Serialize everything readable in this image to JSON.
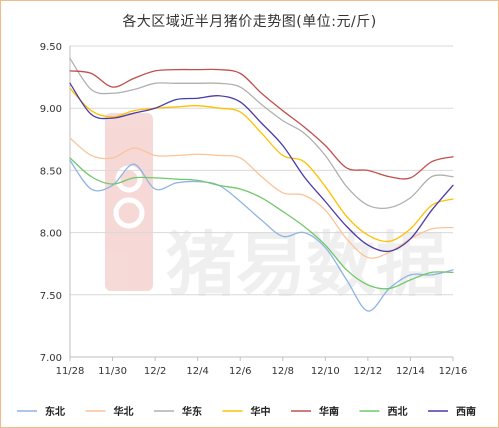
{
  "chart_data": {
    "type": "line",
    "title": "各大区域近半月猪价走势图(单位:元/斤)",
    "xlabel": "",
    "ylabel": "",
    "ylim": [
      7.0,
      9.5
    ],
    "yticks": [
      "9.50",
      "9.00",
      "8.50",
      "8.00",
      "7.50",
      "7.00"
    ],
    "ytick_values": [
      9.5,
      9.0,
      8.5,
      8.0,
      7.5,
      7.0
    ],
    "x": [
      "11/28",
      "11/29",
      "11/30",
      "12/1",
      "12/2",
      "12/3",
      "12/4",
      "12/5",
      "12/6",
      "12/7",
      "12/8",
      "12/9",
      "12/10",
      "12/11",
      "12/12",
      "12/13",
      "12/14",
      "12/15",
      "12/16"
    ],
    "xticks": [
      "11/28",
      "11/30",
      "12/2",
      "12/4",
      "12/6",
      "12/8",
      "12/10",
      "12/12",
      "12/14",
      "12/16"
    ],
    "grid": true,
    "legend_position": "bottom",
    "series": [
      {
        "name": "东北",
        "color": "#8fb4e3",
        "values": [
          8.58,
          8.35,
          8.38,
          8.55,
          8.35,
          8.4,
          8.41,
          8.38,
          8.25,
          8.1,
          7.97,
          8.0,
          7.88,
          7.62,
          7.37,
          7.55,
          7.66,
          7.66,
          7.7
        ]
      },
      {
        "name": "华北",
        "color": "#f9c49a",
        "values": [
          8.76,
          8.62,
          8.6,
          8.68,
          8.62,
          8.62,
          8.63,
          8.62,
          8.6,
          8.45,
          8.32,
          8.3,
          8.18,
          7.95,
          7.8,
          7.84,
          7.95,
          8.03,
          8.04
        ]
      },
      {
        "name": "华东",
        "color": "#b0b0b0",
        "values": [
          9.4,
          9.15,
          9.12,
          9.15,
          9.2,
          9.2,
          9.2,
          9.2,
          9.17,
          9.03,
          8.9,
          8.8,
          8.62,
          8.37,
          8.22,
          8.2,
          8.28,
          8.45,
          8.45
        ]
      },
      {
        "name": "华中",
        "color": "#ffc000",
        "values": [
          9.16,
          8.98,
          8.93,
          8.98,
          9.0,
          9.01,
          9.02,
          9.0,
          8.97,
          8.8,
          8.62,
          8.57,
          8.37,
          8.13,
          7.98,
          7.93,
          8.03,
          8.22,
          8.27
        ]
      },
      {
        "name": "华南",
        "color": "#c0504d",
        "values": [
          9.3,
          9.28,
          9.17,
          9.24,
          9.3,
          9.31,
          9.31,
          9.31,
          9.28,
          9.12,
          8.98,
          8.85,
          8.7,
          8.52,
          8.5,
          8.45,
          8.44,
          8.57,
          8.61
        ]
      },
      {
        "name": "西北",
        "color": "#70c86a",
        "values": [
          8.6,
          8.45,
          8.39,
          8.44,
          8.44,
          8.43,
          8.42,
          8.38,
          8.35,
          8.28,
          8.17,
          8.05,
          7.9,
          7.7,
          7.58,
          7.55,
          7.62,
          7.68,
          7.68
        ]
      },
      {
        "name": "西南",
        "color": "#4a3aa8",
        "values": [
          9.2,
          8.95,
          8.92,
          8.96,
          9.0,
          9.07,
          9.08,
          9.1,
          9.05,
          8.88,
          8.7,
          8.45,
          8.25,
          8.05,
          7.9,
          7.85,
          7.95,
          8.18,
          8.38
        ]
      }
    ]
  },
  "watermark": {
    "text": "猪易数据",
    "colors": {
      "red": "#e07a72",
      "gray": "#c8c8c8"
    }
  }
}
